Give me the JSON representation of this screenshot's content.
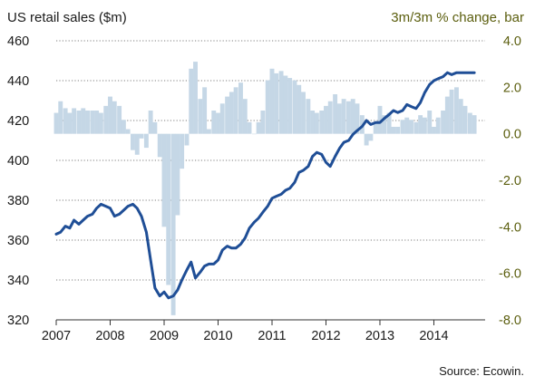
{
  "chart_data": {
    "type": "line",
    "title_left": "US retail sales ($m)",
    "title_right": "3m/3m % change, bar",
    "source": "Source: Ecowin.",
    "x_labels": [
      "2007",
      "2008",
      "2009",
      "2010",
      "2011",
      "2012",
      "2013",
      "2014"
    ],
    "x_range": [
      2007.0,
      2014.95
    ],
    "y_left": {
      "range": [
        320,
        460
      ],
      "ticks": [
        "320",
        "340",
        "360",
        "380",
        "400",
        "420",
        "440",
        "460"
      ]
    },
    "y_right": {
      "range": [
        -8.0,
        4.0
      ],
      "ticks": [
        "-8.0",
        "-6.0",
        "-4.0",
        "-2.0",
        "0.0",
        "2.0",
        "4.0"
      ]
    },
    "grid": "dotted horizontal",
    "colors": {
      "line": "#1f4e96",
      "bar": "#c5d7e6",
      "right_axis_text": "#5b5e0e"
    },
    "series": [
      {
        "type": "line",
        "axis": "left",
        "x": [
          2007.0,
          2007.08,
          2007.17,
          2007.25,
          2007.33,
          2007.42,
          2007.5,
          2007.58,
          2007.67,
          2007.75,
          2007.83,
          2007.92,
          2008.0,
          2008.08,
          2008.17,
          2008.25,
          2008.33,
          2008.42,
          2008.5,
          2008.58,
          2008.67,
          2008.75,
          2008.83,
          2008.92,
          2009.0,
          2009.08,
          2009.17,
          2009.25,
          2009.33,
          2009.42,
          2009.5,
          2009.58,
          2009.67,
          2009.75,
          2009.83,
          2009.92,
          2010.0,
          2010.08,
          2010.17,
          2010.25,
          2010.33,
          2010.42,
          2010.5,
          2010.58,
          2010.67,
          2010.75,
          2010.83,
          2010.92,
          2011.0,
          2011.08,
          2011.17,
          2011.25,
          2011.33,
          2011.42,
          2011.5,
          2011.58,
          2011.67,
          2011.75,
          2011.83,
          2011.92,
          2012.0,
          2012.08,
          2012.17,
          2012.25,
          2012.33,
          2012.42,
          2012.5,
          2012.58,
          2012.67,
          2012.75,
          2012.83,
          2012.92,
          2013.0,
          2013.08,
          2013.17,
          2013.25,
          2013.33,
          2013.42,
          2013.5,
          2013.58,
          2013.67,
          2013.75,
          2013.83,
          2013.92,
          2014.0,
          2014.08,
          2014.17,
          2014.25,
          2014.33,
          2014.42,
          2014.5,
          2014.58,
          2014.67,
          2014.75
        ],
        "values": [
          363,
          364,
          367,
          366,
          370,
          368,
          370,
          372,
          373,
          376,
          378,
          377,
          376,
          372,
          373,
          375,
          377,
          378,
          376,
          372,
          364,
          350,
          336,
          332,
          334,
          331,
          332,
          335,
          340,
          345,
          349,
          341,
          344,
          347,
          348,
          348,
          350,
          355,
          357,
          356,
          356,
          358,
          361,
          366,
          369,
          371,
          374,
          377,
          381,
          382,
          383,
          385,
          386,
          389,
          394,
          395,
          397,
          402,
          404,
          403,
          399,
          397,
          402,
          406,
          409,
          410,
          413,
          415,
          417,
          420,
          418,
          419,
          419,
          421,
          423,
          425,
          424,
          425,
          428,
          427,
          426,
          429,
          434,
          438,
          440,
          441,
          442,
          444,
          443,
          444,
          444,
          444,
          444,
          444
        ]
      },
      {
        "type": "bar",
        "axis": "right",
        "x": [
          2007.0,
          2007.08,
          2007.17,
          2007.25,
          2007.33,
          2007.42,
          2007.5,
          2007.58,
          2007.67,
          2007.75,
          2007.83,
          2007.92,
          2008.0,
          2008.08,
          2008.17,
          2008.25,
          2008.33,
          2008.42,
          2008.5,
          2008.58,
          2008.67,
          2008.75,
          2008.83,
          2008.92,
          2009.0,
          2009.08,
          2009.17,
          2009.25,
          2009.33,
          2009.42,
          2009.5,
          2009.58,
          2009.67,
          2009.75,
          2009.83,
          2009.92,
          2010.0,
          2010.08,
          2010.17,
          2010.25,
          2010.33,
          2010.42,
          2010.5,
          2010.58,
          2010.67,
          2010.75,
          2010.83,
          2010.92,
          2011.0,
          2011.08,
          2011.17,
          2011.25,
          2011.33,
          2011.42,
          2011.5,
          2011.58,
          2011.67,
          2011.75,
          2011.83,
          2011.92,
          2012.0,
          2012.08,
          2012.17,
          2012.25,
          2012.33,
          2012.42,
          2012.5,
          2012.58,
          2012.67,
          2012.75,
          2012.83,
          2012.92,
          2013.0,
          2013.08,
          2013.17,
          2013.25,
          2013.33,
          2013.42,
          2013.5,
          2013.58,
          2013.67,
          2013.75,
          2013.83,
          2013.92,
          2014.0,
          2014.08,
          2014.17,
          2014.25,
          2014.33,
          2014.42,
          2014.5,
          2014.58,
          2014.67,
          2014.75
        ],
        "values": [
          0.9,
          1.4,
          1.1,
          0.9,
          1.1,
          1.0,
          1.1,
          1.0,
          1.0,
          1.0,
          0.9,
          1.2,
          1.6,
          1.4,
          1.2,
          0.6,
          0.2,
          -0.7,
          -0.9,
          -0.2,
          -0.6,
          1.0,
          0.5,
          -1.0,
          -4.0,
          -6.5,
          -7.8,
          -3.5,
          -1.5,
          -0.5,
          2.8,
          3.1,
          1.5,
          2.0,
          0.2,
          1.0,
          0.9,
          1.3,
          1.6,
          1.8,
          2.0,
          2.2,
          1.5,
          0.5,
          0.0,
          0.5,
          1.0,
          2.3,
          2.8,
          2.6,
          2.7,
          2.5,
          2.4,
          2.3,
          2.1,
          1.8,
          1.5,
          1.0,
          0.9,
          1.0,
          1.2,
          1.4,
          1.7,
          1.3,
          1.5,
          1.4,
          1.5,
          1.3,
          0.8,
          -0.5,
          -0.3,
          0.5,
          1.2,
          0.8,
          0.9,
          0.3,
          0.3,
          0.6,
          0.7,
          0.6,
          0.5,
          0.8,
          0.7,
          1.0,
          0.3,
          0.7,
          1.0,
          1.6,
          1.9,
          2.0,
          1.5,
          1.2,
          0.9,
          0.8
        ]
      }
    ]
  }
}
